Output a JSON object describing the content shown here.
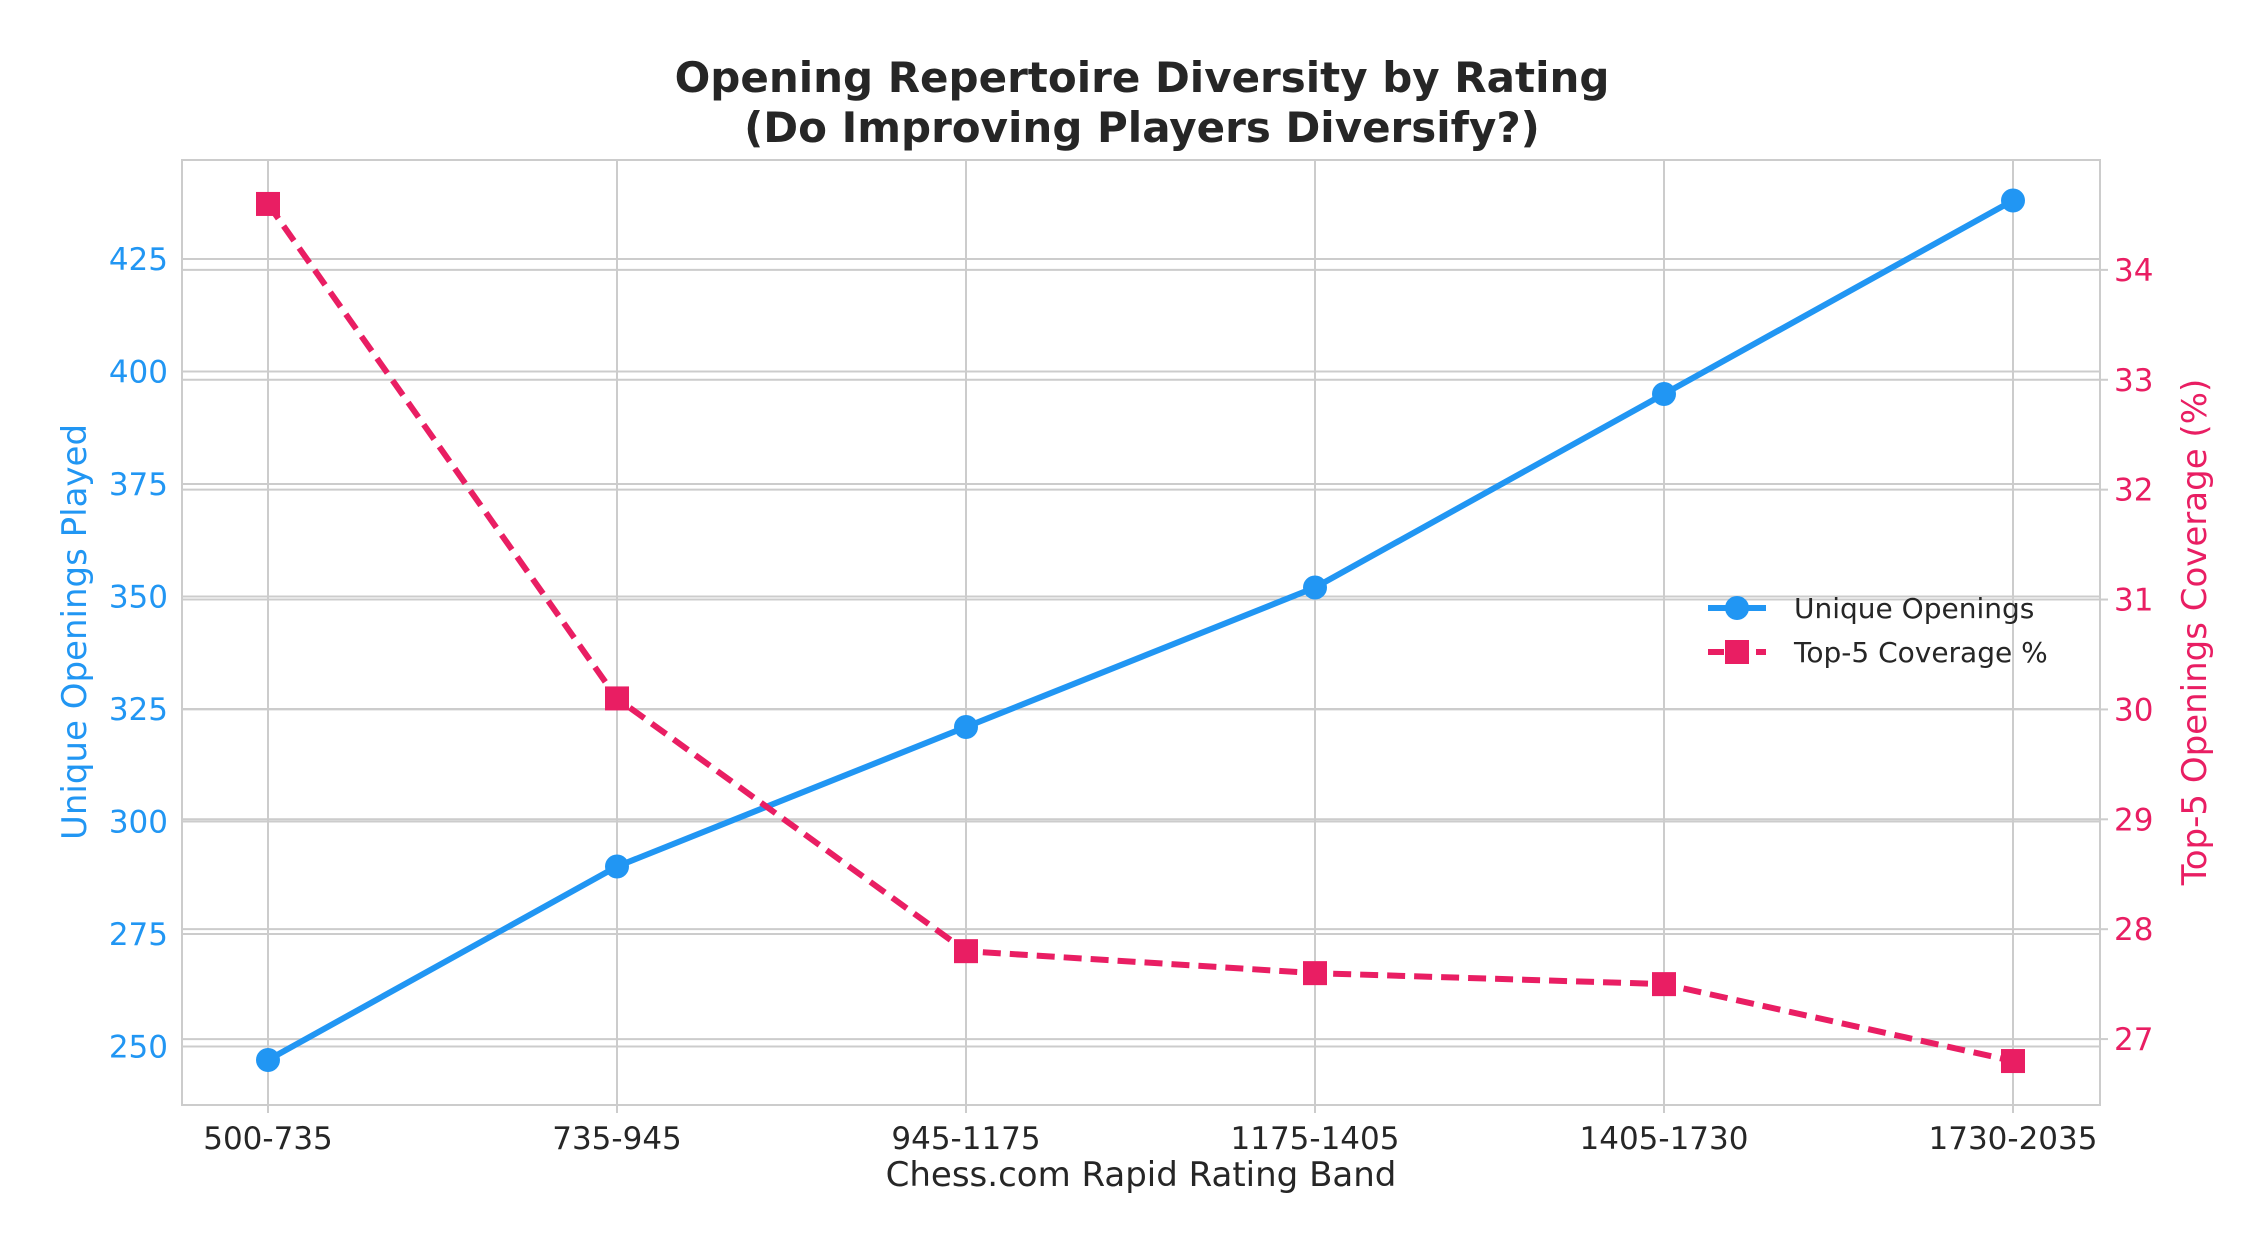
{
  "chart_data": {
    "type": "line",
    "title_line1": "Opening Repertoire Diversity by Rating",
    "title_line2": "(Do Improving Players Diversify?)",
    "xlabel": "Chess.com Rapid Rating Band",
    "ylabel_left": "Unique Openings Played",
    "ylabel_right": "Top-5 Openings Coverage (%)",
    "categories": [
      "500-735",
      "735-945",
      "945-1175",
      "1175-1405",
      "1405-1730",
      "1730-2035"
    ],
    "ylim_left": [
      237,
      447
    ],
    "yticks_left": [
      250,
      275,
      300,
      325,
      350,
      375,
      400,
      425
    ],
    "ylim_right": [
      26.4,
      35.0
    ],
    "yticks_right": [
      27,
      28,
      29,
      30,
      31,
      32,
      33,
      34
    ],
    "grid": true,
    "legend_position": "center-right",
    "series": [
      {
        "name": "Unique Openings",
        "axis": "left",
        "color": "#2196f3",
        "marker": "circle",
        "line_style": "solid",
        "values": [
          247,
          290,
          321,
          352,
          395,
          438
        ]
      },
      {
        "name": "Top-5 Coverage %",
        "axis": "right",
        "color": "#e91e63",
        "marker": "square",
        "line_style": "dashed",
        "values": [
          34.6,
          30.1,
          27.8,
          27.6,
          27.5,
          26.8
        ]
      }
    ]
  }
}
